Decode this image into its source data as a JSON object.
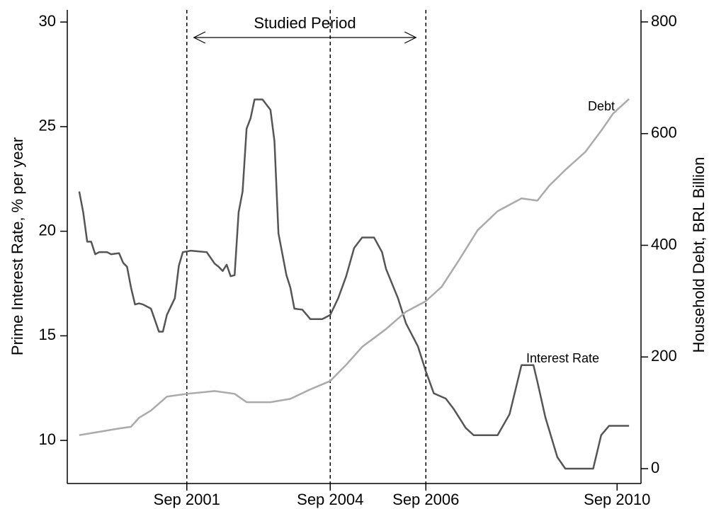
{
  "chart_data": {
    "type": "line",
    "y_label": "Prime Interest Rate, % per year",
    "y2_label": "Household Debt, BRL Billion",
    "annotation": {
      "text": "Studied Period",
      "span": [
        "2001-09",
        "2006-09"
      ]
    },
    "vlines": [
      "2001-09",
      "2004-09",
      "2006-09"
    ],
    "xlim": [
      "1999-03",
      "2011-03"
    ],
    "xticks": [
      {
        "value": "2001-09",
        "label": "Sep 2001"
      },
      {
        "value": "2004-09",
        "label": "Sep 2004"
      },
      {
        "value": "2006-09",
        "label": "Sep 2006"
      },
      {
        "value": "2010-09",
        "label": "Sep 2010"
      }
    ],
    "ylim": [
      7.94,
      30.58
    ],
    "yticks": [
      10,
      15,
      20,
      25,
      30
    ],
    "y2lim": [
      -26.6,
      821.5
    ],
    "y2ticks": [
      0,
      200,
      400,
      600,
      800
    ],
    "series": [
      {
        "name": "Interest Rate",
        "color": "#555555",
        "x": [
          "1999-06",
          "1999-07",
          "1999-08",
          "1999-09",
          "1999-10",
          "1999-11",
          "2000-01",
          "2000-02",
          "2000-04",
          "2000-05",
          "2000-06",
          "2000-07",
          "2000-08",
          "2000-09",
          "2000-10",
          "2000-12",
          "2001-02",
          "2001-03",
          "2001-04",
          "2001-06",
          "2001-07",
          "2001-08",
          "2001-10",
          "2002-02",
          "2002-04",
          "2002-05",
          "2002-06",
          "2002-07",
          "2002-08",
          "2002-09",
          "2002-10",
          "2002-11",
          "2002-12",
          "2003-01",
          "2003-02",
          "2003-04",
          "2003-06",
          "2003-07",
          "2003-08",
          "2003-10",
          "2003-11",
          "2003-12",
          "2004-02",
          "2004-04",
          "2004-07",
          "2004-09",
          "2004-11",
          "2005-01",
          "2005-03",
          "2005-05",
          "2005-08",
          "2005-10",
          "2005-11",
          "2006-02",
          "2006-04",
          "2006-07",
          "2006-09",
          "2006-11",
          "2007-02",
          "2007-04",
          "2007-07",
          "2007-09",
          "2008-03",
          "2008-06",
          "2008-09",
          "2008-12",
          "2009-01",
          "2009-03",
          "2009-06",
          "2009-08",
          "2010-03",
          "2010-05",
          "2010-07",
          "2010-12"
        ],
        "values": [
          21.9,
          20.9,
          19.5,
          19.5,
          18.9,
          19.0,
          19.0,
          18.9,
          18.95,
          18.5,
          18.3,
          17.3,
          16.5,
          16.55,
          16.5,
          16.3,
          15.2,
          15.2,
          16.0,
          16.8,
          18.35,
          19.0,
          19.07,
          19.0,
          18.45,
          18.3,
          18.1,
          18.4,
          17.85,
          17.9,
          20.9,
          21.9,
          24.9,
          25.4,
          26.3,
          26.3,
          25.8,
          24.3,
          19.9,
          17.9,
          17.3,
          16.3,
          16.25,
          15.8,
          15.8,
          16.0,
          16.8,
          17.85,
          19.2,
          19.7,
          19.7,
          19.0,
          18.2,
          16.8,
          15.6,
          14.5,
          13.3,
          12.25,
          12.0,
          11.5,
          10.6,
          10.25,
          10.25,
          11.25,
          13.6,
          13.6,
          12.8,
          11.1,
          9.2,
          8.65,
          8.65,
          10.25,
          10.7,
          10.7
        ]
      },
      {
        "name": "Debt",
        "color": "#aaaaaa",
        "axis": "y2",
        "x": [
          "1999-06",
          "1999-11",
          "2000-04",
          "2000-07",
          "2000-09",
          "2000-12",
          "2001-04",
          "2001-09",
          "2002-04",
          "2002-09",
          "2002-12",
          "2003-06",
          "2003-11",
          "2004-04",
          "2004-09",
          "2005-01",
          "2005-05",
          "2005-11",
          "2006-04",
          "2006-09",
          "2007-01",
          "2007-05",
          "2007-10",
          "2008-03",
          "2008-09",
          "2009-01",
          "2009-04",
          "2009-08",
          "2010-01",
          "2010-05",
          "2010-08",
          "2010-12"
        ],
        "values": [
          60,
          66,
          72,
          75,
          91,
          104,
          129,
          134,
          139,
          134,
          119,
          119,
          125,
          142,
          157,
          186,
          218,
          250,
          281,
          300,
          326,
          370,
          427,
          461,
          484,
          480,
          507,
          535,
          567,
          605,
          636,
          662
        ]
      }
    ]
  }
}
